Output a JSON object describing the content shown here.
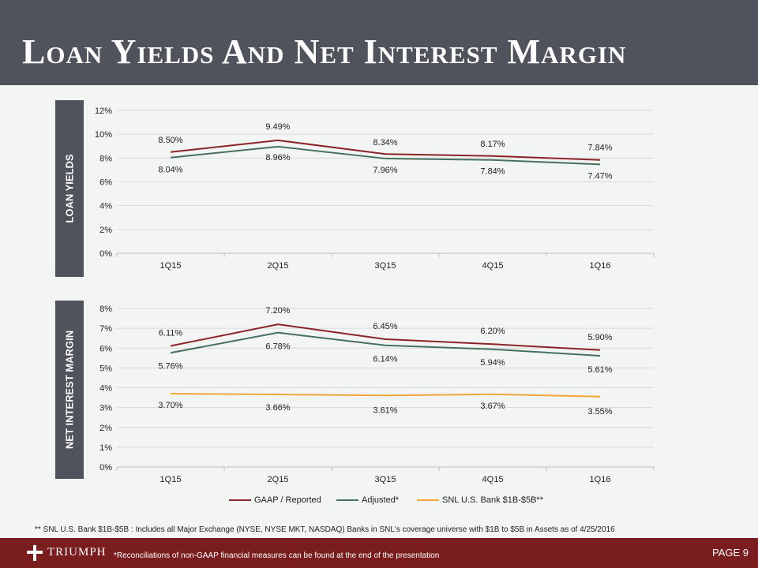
{
  "title": "Loan Yields And Net Interest Margin",
  "colors": {
    "gaap": "#8b2427",
    "adjusted": "#47705f",
    "snl": "#f5a63b",
    "header": "#50525c",
    "footer": "#7a1d1f",
    "grid": "#d9d9d9"
  },
  "side_labels": {
    "loan": "LOAN YIELDS",
    "nim": "NET INTEREST MARGIN"
  },
  "chart_data": [
    {
      "type": "line",
      "name": "loan-yields",
      "categories": [
        "1Q15",
        "2Q15",
        "3Q15",
        "4Q15",
        "1Q16"
      ],
      "ylim": [
        0,
        12
      ],
      "yticks": [
        "0%",
        "2%",
        "4%",
        "6%",
        "8%",
        "10%",
        "12%"
      ],
      "series": [
        {
          "key": "gaap",
          "name": "GAAP / Reported",
          "values": [
            8.5,
            9.49,
            8.34,
            8.17,
            7.84
          ],
          "labels": [
            "8.50%",
            "9.49%",
            "8.34%",
            "8.17%",
            "7.84%"
          ]
        },
        {
          "key": "adjusted",
          "name": "Adjusted*",
          "values": [
            8.04,
            8.96,
            7.96,
            7.84,
            7.47
          ],
          "labels": [
            "8.04%",
            "8.96%",
            "7.96%",
            "7.84%",
            "7.47%"
          ]
        }
      ]
    },
    {
      "type": "line",
      "name": "net-interest-margin",
      "categories": [
        "1Q15",
        "2Q15",
        "3Q15",
        "4Q15",
        "1Q16"
      ],
      "ylim": [
        0,
        8
      ],
      "yticks": [
        "0%",
        "1%",
        "2%",
        "3%",
        "4%",
        "5%",
        "6%",
        "7%",
        "8%"
      ],
      "series": [
        {
          "key": "gaap",
          "name": "GAAP / Reported",
          "values": [
            6.11,
            7.2,
            6.45,
            6.2,
            5.9
          ],
          "labels": [
            "6.11%",
            "7.20%",
            "6.45%",
            "6.20%",
            "5.90%"
          ]
        },
        {
          "key": "adjusted",
          "name": "Adjusted*",
          "values": [
            5.76,
            6.78,
            6.14,
            5.94,
            5.61
          ],
          "labels": [
            "5.76%",
            "6.78%",
            "6.14%",
            "5.94%",
            "5.61%"
          ]
        },
        {
          "key": "snl",
          "name": "SNL U.S. Bank $1B-$5B**",
          "values": [
            3.7,
            3.66,
            3.61,
            3.67,
            3.55
          ],
          "labels": [
            "3.70%",
            "3.66%",
            "3.61%",
            "3.67%",
            "3.55%"
          ]
        }
      ]
    }
  ],
  "legend": {
    "gaap": "GAAP / Reported",
    "adjusted": "Adjusted*",
    "snl": "SNL U.S. Bank $1B-$5B**"
  },
  "footnote": "** SNL U.S. Bank $1B-$5B : Includes all Major Exchange (NYSE, NYSE MKT, NASDAQ) Banks in SNL's coverage universe with $1B to $5B in Assets as of 4/25/2016",
  "footer": {
    "logo_text": "TRIUMPH",
    "note": "*Reconciliations of non-GAAP financial measures can be found at the end of the presentation",
    "page": "PAGE 9"
  }
}
